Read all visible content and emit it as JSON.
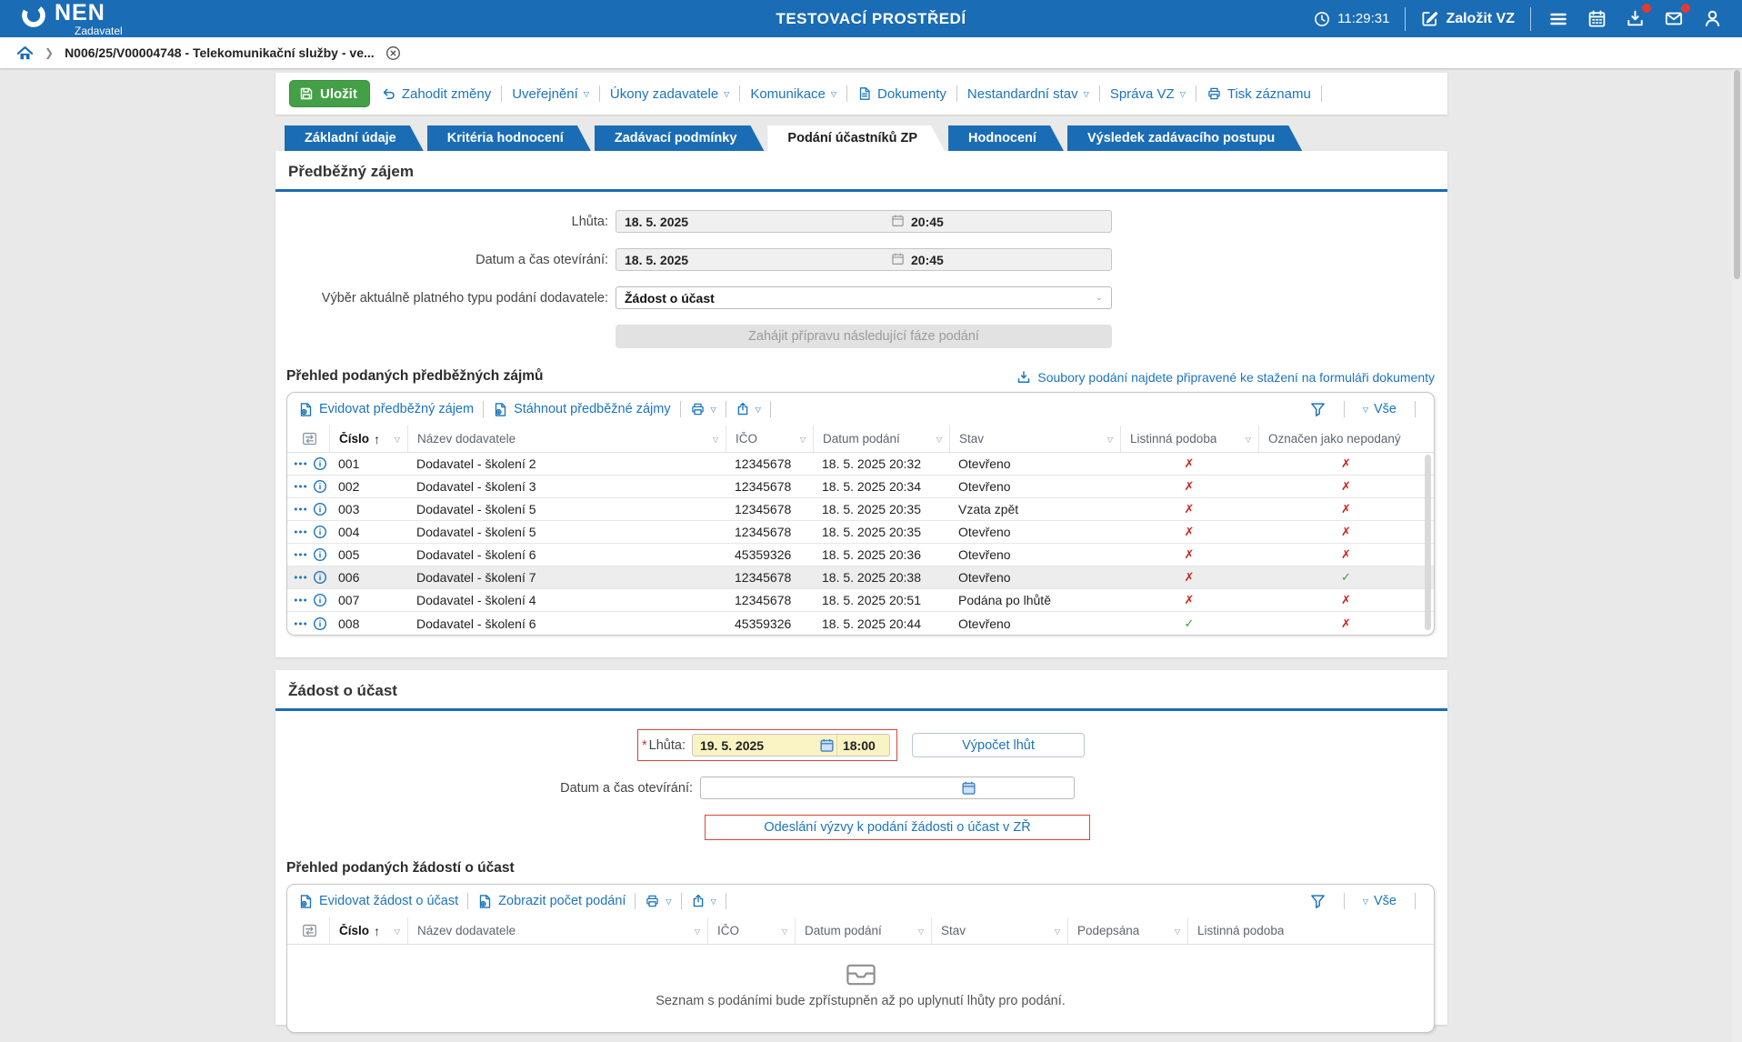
{
  "colors": {
    "brand_blue": "#1a6cb4",
    "link_blue": "#1b74bd",
    "save_green": "#43A047",
    "error_red": "#d8453a",
    "mark_no": "#c9251c",
    "mark_yes": "#2f9e36",
    "highlight_yellow": "#faf3c3"
  },
  "header": {
    "logo": "NEN",
    "role": "Zadavatel",
    "env_title": "TESTOVACÍ PROSTŘEDÍ",
    "time": "11:29:31",
    "create_vz": "Založit VZ"
  },
  "breadcrumb": {
    "item": "N006/25/V00004748 - Telekomunikační služby - ve..."
  },
  "toolbar": {
    "save": "Uložit",
    "items": [
      {
        "label": "Zahodit změny",
        "icon": "undo-icon",
        "dropdown": false
      },
      {
        "label": "Uveřejnění",
        "icon": null,
        "dropdown": true
      },
      {
        "label": "Úkony zadavatele",
        "icon": null,
        "dropdown": true
      },
      {
        "label": "Komunikace",
        "icon": null,
        "dropdown": true
      },
      {
        "label": "Dokumenty",
        "icon": "document-icon",
        "dropdown": false
      },
      {
        "label": "Nestandardní stav",
        "icon": null,
        "dropdown": true
      },
      {
        "label": "Správa VZ",
        "icon": null,
        "dropdown": true
      },
      {
        "label": "Tisk záznamu",
        "icon": "printer-icon",
        "dropdown": false
      }
    ]
  },
  "tabs": [
    {
      "label": "Základní údaje",
      "active": false
    },
    {
      "label": "Kritéria hodnocení",
      "active": false
    },
    {
      "label": "Zadávací podmínky",
      "active": false
    },
    {
      "label": "Podání účastníků ZP",
      "active": true
    },
    {
      "label": "Hodnocení",
      "active": false
    },
    {
      "label": "Výsledek zadávacího postupu",
      "active": false
    }
  ],
  "sec1": {
    "title": "Předběžný zájem",
    "fields": {
      "lhuta_label": "Lhůta:",
      "lhuta_date": "18. 5. 2025",
      "lhuta_time": "20:45",
      "open_label": "Datum a čas otevírání:",
      "open_date": "18. 5. 2025",
      "open_time": "20:45",
      "type_label": "Výběr aktuálně platného typu podání dodavatele:",
      "type_value": "Žádost o účast",
      "next_phase_button": "Zahájit přípravu následující fáze podání"
    },
    "table_title": "Přehled podaných předběžných zájmů",
    "files_link": "Soubory podání najdete připravené ke stažení na formuláři dokumenty",
    "table": {
      "actions": [
        {
          "label": "Evidovat předběžný zájem",
          "icon": "doc-gear-icon"
        },
        {
          "label": "Stáhnout předběžné zájmy",
          "icon": "doc-gear-icon"
        }
      ],
      "filter_all": "Vše",
      "columns": [
        {
          "label": "Číslo",
          "sorted": true
        },
        {
          "label": "Název dodavatele",
          "sorted": false
        },
        {
          "label": "IČO",
          "sorted": false
        },
        {
          "label": "Datum podání",
          "sorted": false
        },
        {
          "label": "Stav",
          "sorted": false
        },
        {
          "label": "Listinná podoba",
          "sorted": false
        },
        {
          "label": "Označen jako nepodaný",
          "sorted": false
        }
      ],
      "rows": [
        {
          "num": "001",
          "name": "Dodavatel - školení 2",
          "ico": "12345678",
          "date": "18. 5. 2025 20:32",
          "status": "Otevřeno",
          "paper": false,
          "unsubmitted": false,
          "highlighted": false
        },
        {
          "num": "002",
          "name": "Dodavatel - školení 3",
          "ico": "12345678",
          "date": "18. 5. 2025 20:34",
          "status": "Otevřeno",
          "paper": false,
          "unsubmitted": false,
          "highlighted": false
        },
        {
          "num": "003",
          "name": "Dodavatel - školení 5",
          "ico": "12345678",
          "date": "18. 5. 2025 20:35",
          "status": "Vzata zpět",
          "paper": false,
          "unsubmitted": false,
          "highlighted": false
        },
        {
          "num": "004",
          "name": "Dodavatel - školení 5",
          "ico": "12345678",
          "date": "18. 5. 2025 20:35",
          "status": "Otevřeno",
          "paper": false,
          "unsubmitted": false,
          "highlighted": false
        },
        {
          "num": "005",
          "name": "Dodavatel - školení 6",
          "ico": "45359326",
          "date": "18. 5. 2025 20:36",
          "status": "Otevřeno",
          "paper": false,
          "unsubmitted": false,
          "highlighted": false
        },
        {
          "num": "006",
          "name": "Dodavatel - školení 7",
          "ico": "12345678",
          "date": "18. 5. 2025 20:38",
          "status": "Otevřeno",
          "paper": false,
          "unsubmitted": true,
          "highlighted": true
        },
        {
          "num": "007",
          "name": "Dodavatel - školení 4",
          "ico": "12345678",
          "date": "18. 5. 2025 20:51",
          "status": "Podána po lhůtě",
          "paper": false,
          "unsubmitted": false,
          "highlighted": false
        },
        {
          "num": "008",
          "name": "Dodavatel - školení 6",
          "ico": "45359326",
          "date": "18. 5. 2025 20:44",
          "status": "Otevřeno",
          "paper": true,
          "unsubmitted": false,
          "highlighted": false
        }
      ]
    }
  },
  "sec2": {
    "title": "Žádost o účast",
    "fields": {
      "lhuta_label": "Lhůta:",
      "lhuta_required": "*",
      "lhuta_date": "19. 5. 2025",
      "lhuta_time": "18:00",
      "vypocet_button": "Výpočet lhůt",
      "open_label": "Datum a čas otevírání:",
      "send_button": "Odeslání výzvy k podání žádosti o účast v ZŘ"
    },
    "table_title": "Přehled podaných žádostí o účast",
    "table": {
      "actions": [
        {
          "label": "Evidovat žádost o účast",
          "icon": "doc-gear-icon"
        },
        {
          "label": "Zobrazit počet podání",
          "icon": "doc-gear-icon"
        }
      ],
      "filter_all": "Vše",
      "columns": [
        {
          "label": "Číslo",
          "sorted": true
        },
        {
          "label": "Název dodavatele",
          "sorted": false
        },
        {
          "label": "IČO",
          "sorted": false
        },
        {
          "label": "Datum podání",
          "sorted": false
        },
        {
          "label": "Stav",
          "sorted": false
        },
        {
          "label": "Podepsána",
          "sorted": false
        },
        {
          "label": "Listinná podoba",
          "sorted": false
        }
      ],
      "rows": [],
      "empty_text": "Seznam s podáními bude zpřístupněn až po uplynutí lhůty pro podání."
    }
  }
}
